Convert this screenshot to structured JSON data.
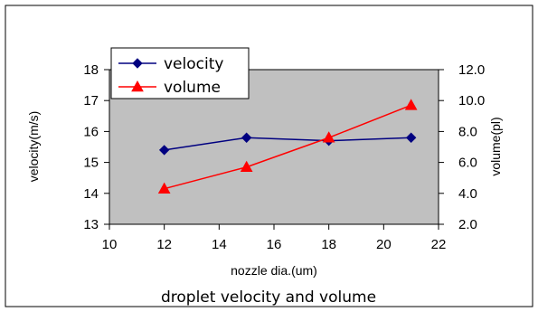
{
  "chart_data": {
    "type": "line",
    "title": "",
    "caption": "droplet velocity and volume",
    "xlabel": "nozzle dia.(um)",
    "ylabel_left": "velocity(m/s)",
    "ylabel_right": "volume(pl)",
    "xlim": [
      10,
      22
    ],
    "ylim_left": [
      13,
      18
    ],
    "ylim_right": [
      2.0,
      12.0
    ],
    "x_ticks": [
      "10",
      "12",
      "14",
      "16",
      "18",
      "20",
      "22"
    ],
    "y_left_ticks": [
      "13",
      "14",
      "15",
      "16",
      "17",
      "18"
    ],
    "y_right_ticks": [
      "2.0",
      "4.0",
      "6.0",
      "8.0",
      "10.0",
      "12.0"
    ],
    "grid": false,
    "plot_background": "#c0c0c0",
    "legend_position": "top-left",
    "series": [
      {
        "name": "velocity",
        "axis": "left",
        "color": "#000080",
        "marker": "diamond",
        "x": [
          12,
          15,
          18,
          21
        ],
        "values": [
          15.4,
          15.8,
          15.7,
          15.8
        ]
      },
      {
        "name": "volume",
        "axis": "right",
        "color": "#ff0000",
        "marker": "triangle",
        "x": [
          12,
          15,
          18,
          21
        ],
        "values": [
          4.3,
          5.7,
          7.6,
          9.7
        ]
      }
    ]
  }
}
